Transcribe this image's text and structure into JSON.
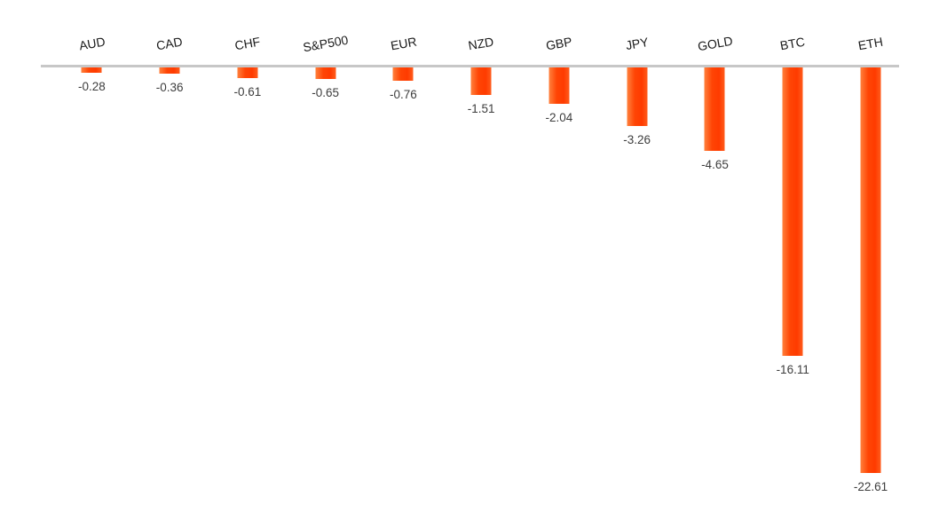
{
  "chart_data": {
    "type": "bar",
    "orientation": "vertical",
    "categories": [
      "AUD",
      "CAD",
      "CHF",
      "S&P500",
      "EUR",
      "NZD",
      "GBP",
      "JPY",
      "GOLD",
      "BTC",
      "ETH"
    ],
    "values": [
      -0.28,
      -0.36,
      -0.61,
      -0.65,
      -0.76,
      -1.51,
      -2.04,
      -3.26,
      -4.65,
      -16.11,
      -22.61
    ],
    "data_labels": [
      "-0.28",
      "-0.36",
      "-0.61",
      "-0.65",
      "-0.76",
      "-1.51",
      "-2.04",
      "-3.26",
      "-4.65",
      "-16.11",
      "-22.61"
    ],
    "title": "",
    "xlabel": "",
    "ylabel": "",
    "ylim": [
      -24,
      0
    ],
    "grid": false,
    "legend": "none",
    "axis_ticks_visible": false,
    "category_label_rotation_deg": 10,
    "colors": {
      "bar_fill": "#ff3b00",
      "bar_fill_light_edge": "#ff813d",
      "zero_line": "#c7c7c7",
      "category_label": "#1a1a1a",
      "data_label": "#3d3d3d",
      "background": "#ffffff"
    }
  }
}
